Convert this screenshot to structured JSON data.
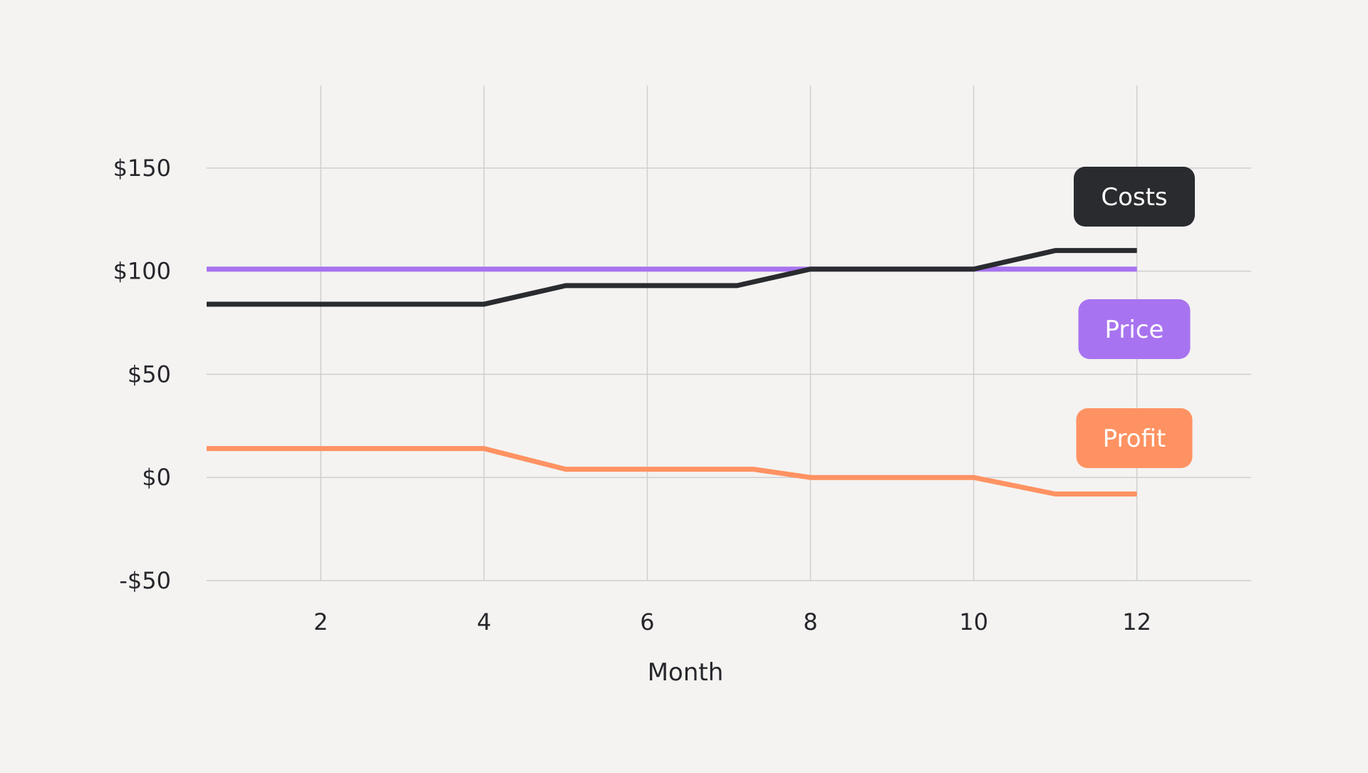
{
  "colors": {
    "background": "#F4F3F1",
    "grid": "#CFCFCF",
    "costs": "#2A2B2F",
    "price": "#A873F0",
    "profit": "#FF9262"
  },
  "chart_data": {
    "type": "line",
    "title": "",
    "xlabel": "Month",
    "ylabel": "",
    "xlim": [
      0.6,
      13.4
    ],
    "ylim": [
      -50,
      190
    ],
    "x_ticks": [
      2,
      4,
      6,
      8,
      10,
      12
    ],
    "x_tick_labels": [
      "2",
      "4",
      "6",
      "8",
      "10",
      "12"
    ],
    "y_ticks": [
      -50,
      0,
      50,
      100,
      150
    ],
    "y_tick_labels": [
      "-$50",
      "$0",
      "$50",
      "$100",
      "$150"
    ],
    "grid": true,
    "legend": "inline labels at right end of each series",
    "series": [
      {
        "name": "Costs",
        "color": "#2A2B2F",
        "points": [
          [
            0.6,
            84
          ],
          [
            4,
            84
          ],
          [
            5,
            93
          ],
          [
            7.1,
            93
          ],
          [
            8,
            101
          ],
          [
            10,
            101
          ],
          [
            11,
            110
          ],
          [
            12,
            110
          ]
        ]
      },
      {
        "name": "Price",
        "color": "#A873F0",
        "points": [
          [
            0.6,
            101
          ],
          [
            12,
            101
          ]
        ]
      },
      {
        "name": "Profit",
        "color": "#FF9262",
        "points": [
          [
            0.6,
            14
          ],
          [
            4,
            14
          ],
          [
            5,
            4
          ],
          [
            7.3,
            4
          ],
          [
            8,
            0
          ],
          [
            10,
            0
          ],
          [
            11,
            -8
          ],
          [
            12,
            -8
          ]
        ]
      }
    ]
  }
}
